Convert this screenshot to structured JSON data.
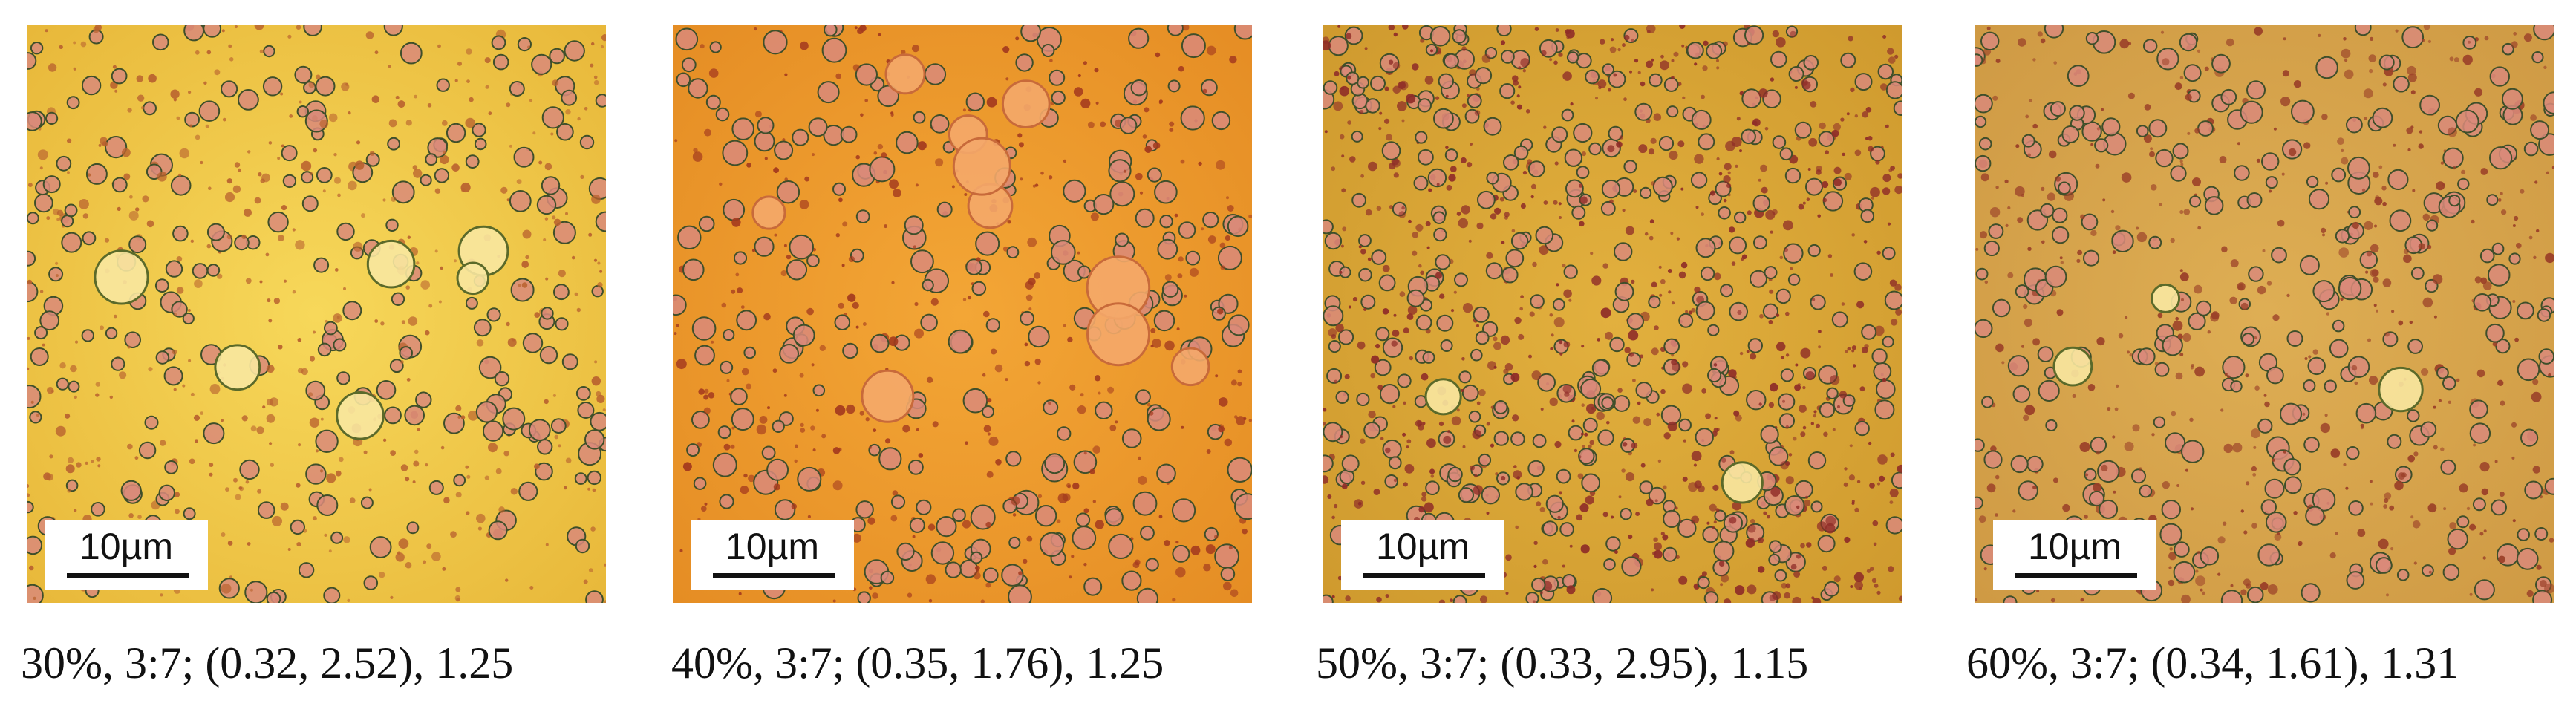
{
  "panels": [
    {
      "scale_label": "10µm",
      "caption": "30%, 3:7; (0.32, 2.52), 1.25",
      "background_color": "#f0c43a",
      "droplet_color": "#b9622f"
    },
    {
      "scale_label": "10µm",
      "caption": "40%, 3:7; (0.35, 1.76), 1.25",
      "background_color": "#ee9a2c",
      "droplet_color": "#a43a1e"
    },
    {
      "scale_label": "10µm",
      "caption": "50%, 3:7; (0.33, 2.95), 1.15",
      "background_color": "#d9a534",
      "droplet_color": "#8f2d28"
    },
    {
      "scale_label": "10µm",
      "caption": "60%, 3:7; (0.34, 1.61), 1.31",
      "background_color": "#d8a448",
      "droplet_color": "#9a3f28"
    }
  ]
}
